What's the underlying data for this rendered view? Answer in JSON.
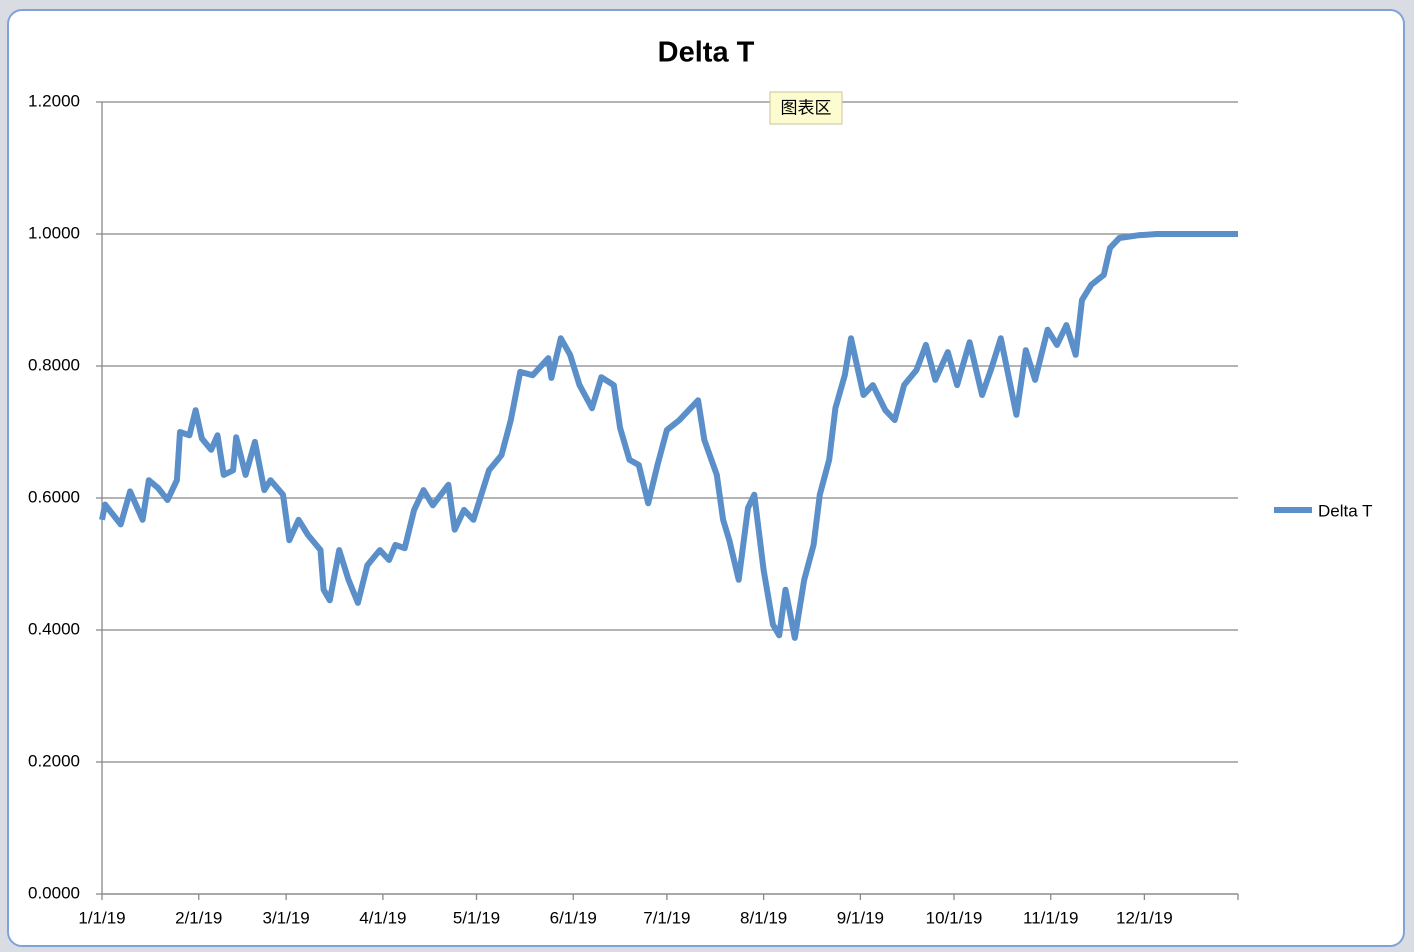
{
  "chart_data": {
    "type": "line",
    "title": "Delta T",
    "tooltip": "图表区",
    "x": [
      "1/1/19",
      "1/2/19",
      "1/7/19",
      "1/10/19",
      "1/14/19",
      "1/16/19",
      "1/19/19",
      "1/22/19",
      "1/25/19",
      "1/26/19",
      "1/29/19",
      "1/31/19",
      "2/2/19",
      "2/5/19",
      "2/7/19",
      "2/9/19",
      "2/12/19",
      "2/13/19",
      "2/16/19",
      "2/19/19",
      "2/22/19",
      "2/24/19",
      "2/28/19",
      "3/2/19",
      "3/5/19",
      "3/8/19",
      "3/12/19",
      "3/13/19",
      "3/15/19",
      "3/18/19",
      "3/21/19",
      "3/24/19",
      "3/27/19",
      "3/31/19",
      "4/3/19",
      "4/5/19",
      "4/8/19",
      "4/11/19",
      "4/14/19",
      "4/17/19",
      "4/22/19",
      "4/24/19",
      "4/27/19",
      "4/30/19",
      "5/5/19",
      "5/9/19",
      "5/12/19",
      "5/15/19",
      "5/19/19",
      "5/24/19",
      "5/25/19",
      "5/28/19",
      "5/31/19",
      "6/3/19",
      "6/7/19",
      "6/10/19",
      "6/14/19",
      "6/16/19",
      "6/19/19",
      "6/22/19",
      "6/25/19",
      "6/28/19",
      "7/1/19",
      "7/5/19",
      "7/8/19",
      "7/11/19",
      "7/13/19",
      "7/17/19",
      "7/19/19",
      "7/21/19",
      "7/24/19",
      "7/27/19",
      "7/29/19",
      "8/1/19",
      "8/4/19",
      "8/6/19",
      "8/8/19",
      "8/11/19",
      "8/14/19",
      "8/17/19",
      "8/19/19",
      "8/22/19",
      "8/24/19",
      "8/27/19",
      "8/29/19",
      "9/2/19",
      "9/5/19",
      "9/9/19",
      "9/12/19",
      "9/15/19",
      "9/19/19",
      "9/22/19",
      "9/25/19",
      "9/29/19",
      "10/2/19",
      "10/6/19",
      "10/10/19",
      "10/13/19",
      "10/16/19",
      "10/21/19",
      "10/24/19",
      "10/27/19",
      "10/31/19",
      "11/3/19",
      "11/6/19",
      "11/9/19",
      "11/11/19",
      "11/14/19",
      "11/18/19",
      "11/20/19",
      "11/23/19",
      "11/29/19",
      "12/5/19",
      "12/15/19",
      "12/31/19"
    ],
    "series": [
      {
        "name": "Delta T",
        "color": "#5b8fc9",
        "values": [
          0.567,
          0.59,
          0.56,
          0.61,
          0.567,
          0.627,
          0.615,
          0.597,
          0.627,
          0.7,
          0.695,
          0.733,
          0.69,
          0.673,
          0.695,
          0.635,
          0.642,
          0.692,
          0.635,
          0.685,
          0.612,
          0.627,
          0.605,
          0.536,
          0.567,
          0.544,
          0.521,
          0.461,
          0.445,
          0.521,
          0.476,
          0.441,
          0.498,
          0.521,
          0.506,
          0.529,
          0.524,
          0.582,
          0.612,
          0.589,
          0.62,
          0.552,
          0.582,
          0.567,
          0.642,
          0.665,
          0.718,
          0.791,
          0.786,
          0.812,
          0.782,
          0.842,
          0.817,
          0.771,
          0.736,
          0.783,
          0.771,
          0.706,
          0.658,
          0.65,
          0.592,
          0.65,
          0.703,
          0.718,
          0.733,
          0.748,
          0.688,
          0.635,
          0.567,
          0.536,
          0.476,
          0.585,
          0.605,
          0.491,
          0.408,
          0.392,
          0.461,
          0.388,
          0.476,
          0.529,
          0.605,
          0.658,
          0.736,
          0.786,
          0.842,
          0.756,
          0.771,
          0.733,
          0.718,
          0.771,
          0.794,
          0.832,
          0.779,
          0.821,
          0.771,
          0.836,
          0.756,
          0.797,
          0.842,
          0.726,
          0.824,
          0.779,
          0.855,
          0.832,
          0.862,
          0.817,
          0.9,
          0.923,
          0.938,
          0.979,
          0.994,
          0.998,
          1.0,
          1.0,
          1.0
        ]
      }
    ],
    "xlim": [
      "1/1/19",
      "12/31/19"
    ],
    "xticks": [
      "1/1/19",
      "2/1/19",
      "3/1/19",
      "4/1/19",
      "5/1/19",
      "6/1/19",
      "7/1/19",
      "8/1/19",
      "9/1/19",
      "10/1/19",
      "11/1/19",
      "12/1/19"
    ],
    "ylim": [
      0,
      1.2
    ],
    "yticks": [
      {
        "value": 0,
        "label": "0.0000"
      },
      {
        "value": 0.2,
        "label": "0.2000"
      },
      {
        "value": 0.4,
        "label": "0.4000"
      },
      {
        "value": 0.6,
        "label": "0.6000"
      },
      {
        "value": 0.8,
        "label": "0.8000"
      },
      {
        "value": 1,
        "label": "1.0000"
      },
      {
        "value": 1.2,
        "label": "1.2000"
      }
    ],
    "grid": true,
    "legend": "right"
  }
}
